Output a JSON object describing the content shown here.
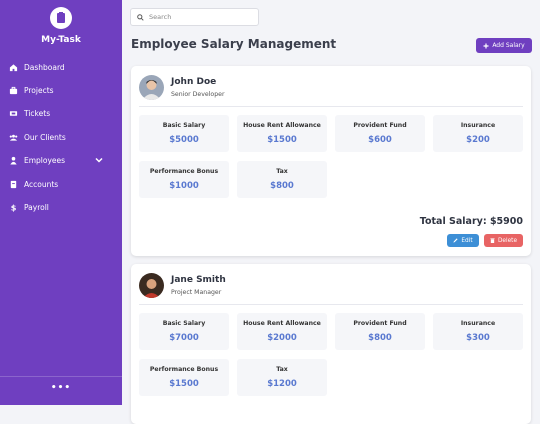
{
  "sidebar": {
    "brand": "My-Task",
    "nav": [
      "Dashboard",
      "Projects",
      "Tickets",
      "Our Clients",
      "Employees",
      "Accounts",
      "Payroll"
    ],
    "more": "•••"
  },
  "search": {
    "placeholder": "Search"
  },
  "header": {
    "title": "Employee Salary Management",
    "add_button": "Add Salary"
  },
  "employees": [
    {
      "name": "John Doe",
      "role": "Senior Developer",
      "items": [
        {
          "label": "Basic Salary",
          "value": "$5000"
        },
        {
          "label": "House Rent Allowance",
          "value": "$1500"
        },
        {
          "label": "Provident Fund",
          "value": "$600"
        },
        {
          "label": "Insurance",
          "value": "$200"
        },
        {
          "label": "Performance Bonus",
          "value": "$1000"
        },
        {
          "label": "Tax",
          "value": "$800"
        }
      ],
      "total_label": "Total Salary:",
      "total": "$5900",
      "edit": "Edit",
      "delete": "Delete"
    },
    {
      "name": "Jane Smith",
      "role": "Project Manager",
      "items": [
        {
          "label": "Basic Salary",
          "value": "$7000"
        },
        {
          "label": "House Rent Allowance",
          "value": "$2000"
        },
        {
          "label": "Provident Fund",
          "value": "$800"
        },
        {
          "label": "Insurance",
          "value": "$300"
        },
        {
          "label": "Performance Bonus",
          "value": "$1500"
        },
        {
          "label": "Tax",
          "value": "$1200"
        }
      ]
    }
  ]
}
